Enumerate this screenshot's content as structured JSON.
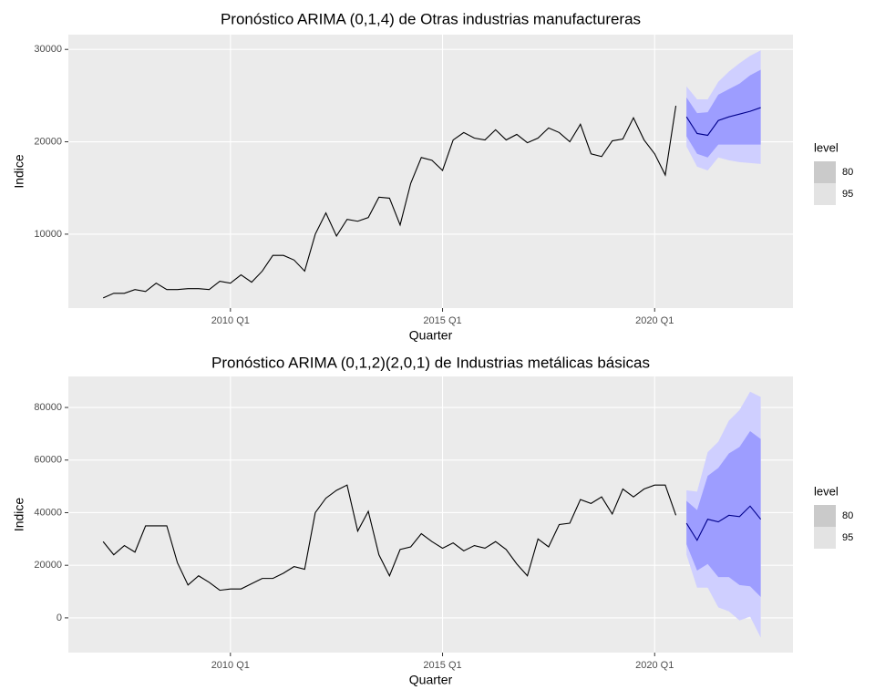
{
  "chart_data": [
    {
      "type": "line",
      "title": "Pronóstico ARIMA (0,1,4) de Otras industrias manufactureras",
      "x_label": "Quarter",
      "y_label": "Indice",
      "xlim": [
        2006.18,
        2023.26
      ],
      "ylim": [
        2000,
        31600
      ],
      "xticks": [
        {
          "value": 2010,
          "label": "2010 Q1"
        },
        {
          "value": 2015,
          "label": "2015 Q1"
        },
        {
          "value": 2020,
          "label": "2020 Q1"
        }
      ],
      "yticks": [
        10000,
        20000,
        30000
      ],
      "grid": true,
      "color": "#000000",
      "x": [
        2007,
        2007.25,
        2007.5,
        2007.75,
        2008,
        2008.25,
        2008.5,
        2008.75,
        2009,
        2009.25,
        2009.5,
        2009.75,
        2010,
        2010.25,
        2010.5,
        2010.75,
        2011,
        2011.25,
        2011.5,
        2011.75,
        2012,
        2012.25,
        2012.5,
        2012.75,
        2013,
        2013.25,
        2013.5,
        2013.75,
        2014,
        2014.25,
        2014.5,
        2014.75,
        2015,
        2015.25,
        2015.5,
        2015.75,
        2016,
        2016.25,
        2016.5,
        2016.75,
        2017,
        2017.25,
        2017.5,
        2017.75,
        2018,
        2018.25,
        2018.5,
        2018.75,
        2019,
        2019.25,
        2019.5,
        2019.75,
        2020,
        2020.25,
        2020.5
      ],
      "values": [
        3100,
        3600,
        3600,
        4000,
        3800,
        4700,
        4000,
        4000,
        4100,
        4100,
        4000,
        4900,
        4700,
        5600,
        4800,
        6000,
        7700,
        7700,
        7200,
        6000,
        10000,
        12300,
        9800,
        11600,
        11400,
        11800,
        14000,
        13900,
        11000,
        15500,
        18300,
        18000,
        16900,
        20200,
        21000,
        20400,
        20200,
        21300,
        20200,
        20800,
        19900,
        20400,
        21500,
        21000,
        20000,
        21900,
        18700,
        18400,
        20100,
        20300,
        22600,
        20200,
        18700,
        16400,
        23900
      ],
      "forecast": {
        "x": [
          2020.75,
          2021,
          2021.25,
          2021.5,
          2021.75,
          2022,
          2022.25,
          2022.5
        ],
        "mean": [
          22700,
          20900,
          20700,
          22300,
          22700,
          23000,
          23300,
          23700
        ],
        "color": "#00008b",
        "intervals": [
          {
            "level": 95,
            "color": "#cfcfff",
            "key_color": "#e3e3e3",
            "lo": [
              19500,
              17300,
              16900,
              18300,
              18000,
              17800,
              17700,
              17600
            ],
            "hi": [
              26000,
              24600,
              24600,
              26500,
              27600,
              28500,
              29300,
              29900
            ]
          },
          {
            "level": 80,
            "color": "#9d9dff",
            "key_color": "#cacaca",
            "lo": [
              20600,
              18700,
              18300,
              19700,
              19700,
              19700,
              19700,
              19700
            ],
            "hi": [
              24800,
              23100,
              23200,
              25100,
              25700,
              26300,
              27200,
              27800
            ]
          }
        ]
      },
      "legend_title": "level"
    },
    {
      "type": "line",
      "title": "Pronóstico ARIMA (0,1,2)(2,0,1) de Industrias metálicas básicas",
      "x_label": "Quarter",
      "y_label": "Indice",
      "xlim": [
        2006.18,
        2023.26
      ],
      "ylim": [
        -13200,
        91800
      ],
      "xticks": [
        {
          "value": 2010,
          "label": "2010 Q1"
        },
        {
          "value": 2015,
          "label": "2015 Q1"
        },
        {
          "value": 2020,
          "label": "2020 Q1"
        }
      ],
      "yticks": [
        0,
        20000,
        40000,
        60000,
        80000
      ],
      "grid": true,
      "color": "#000000",
      "x": [
        2007,
        2007.25,
        2007.5,
        2007.75,
        2008,
        2008.25,
        2008.5,
        2008.75,
        2009,
        2009.25,
        2009.5,
        2009.75,
        2010,
        2010.25,
        2010.5,
        2010.75,
        2011,
        2011.25,
        2011.5,
        2011.75,
        2012,
        2012.25,
        2012.5,
        2012.75,
        2013,
        2013.25,
        2013.5,
        2013.75,
        2014,
        2014.25,
        2014.5,
        2014.75,
        2015,
        2015.25,
        2015.5,
        2015.75,
        2016,
        2016.25,
        2016.5,
        2016.75,
        2017,
        2017.25,
        2017.5,
        2017.75,
        2018,
        2018.25,
        2018.5,
        2018.75,
        2019,
        2019.25,
        2019.5,
        2019.75,
        2020,
        2020.25,
        2020.5
      ],
      "values": [
        29000,
        24000,
        27500,
        25000,
        35000,
        35000,
        35000,
        21000,
        12500,
        16000,
        13500,
        10500,
        11000,
        11000,
        13000,
        15000,
        15000,
        17000,
        19500,
        18500,
        40000,
        45500,
        48500,
        50500,
        33000,
        40500,
        24000,
        16000,
        26000,
        27000,
        32000,
        29000,
        26500,
        28500,
        25500,
        27500,
        26500,
        29000,
        26000,
        20500,
        16000,
        30000,
        27000,
        35500,
        36000,
        45000,
        43500,
        46000,
        39500,
        49000,
        46000,
        49000,
        50500,
        50500,
        39000
      ],
      "forecast": {
        "x": [
          2020.75,
          2021,
          2021.25,
          2021.5,
          2021.75,
          2022,
          2022.25,
          2022.5
        ],
        "mean": [
          36000,
          29500,
          37500,
          36500,
          39000,
          38500,
          42500,
          37500
        ],
        "color": "#00008b",
        "intervals": [
          {
            "level": 95,
            "color": "#cfcfff",
            "key_color": "#e3e3e3",
            "lo": [
              24000,
              11500,
              11500,
              4000,
              2500,
              -1000,
              500,
              -7500
            ],
            "hi": [
              48500,
              48000,
              63000,
              67000,
              75000,
              79000,
              86000,
              84000
            ]
          },
          {
            "level": 80,
            "color": "#9d9dff",
            "key_color": "#cacaca",
            "lo": [
              28000,
              18000,
              20500,
              15500,
              15500,
              12500,
              12000,
              8000
            ],
            "hi": [
              44500,
              41000,
              54000,
              57000,
              62500,
              65000,
              71000,
              68000
            ]
          }
        ]
      },
      "legend_title": "level"
    }
  ]
}
